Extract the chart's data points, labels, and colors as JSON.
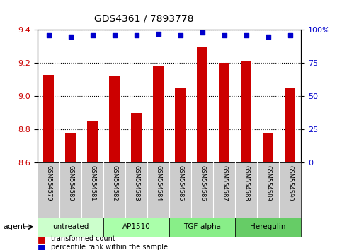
{
  "title": "GDS4361 / 7893778",
  "samples": [
    "GSM554579",
    "GSM554580",
    "GSM554581",
    "GSM554582",
    "GSM554583",
    "GSM554584",
    "GSM554585",
    "GSM554586",
    "GSM554587",
    "GSM554588",
    "GSM554589",
    "GSM554590"
  ],
  "bar_values": [
    9.13,
    8.78,
    8.85,
    9.12,
    8.9,
    9.18,
    9.05,
    9.3,
    9.2,
    9.21,
    8.78,
    9.05
  ],
  "percentile_values": [
    96,
    95,
    96,
    96,
    96,
    97,
    96,
    98,
    96,
    96,
    95,
    96
  ],
  "ylim_left": [
    8.6,
    9.4
  ],
  "ylim_right": [
    0,
    100
  ],
  "yticks_left": [
    8.6,
    8.8,
    9.0,
    9.2,
    9.4
  ],
  "yticks_right": [
    0,
    25,
    50,
    75,
    100
  ],
  "bar_color": "#cc0000",
  "dot_color": "#0000cc",
  "groups": [
    {
      "label": "untreated",
      "start": 0,
      "end": 3,
      "color": "#ccffcc"
    },
    {
      "label": "AP1510",
      "start": 3,
      "end": 6,
      "color": "#aaffaa"
    },
    {
      "label": "TGF-alpha",
      "start": 6,
      "end": 9,
      "color": "#88ee88"
    },
    {
      "label": "Heregulin",
      "start": 9,
      "end": 12,
      "color": "#66cc66"
    }
  ],
  "agent_label": "agent",
  "legend_bar_label": "transformed count",
  "legend_dot_label": "percentile rank within the sample",
  "background_plot": "#ffffff",
  "tick_area_color": "#cccccc",
  "grid_color": "#000000"
}
